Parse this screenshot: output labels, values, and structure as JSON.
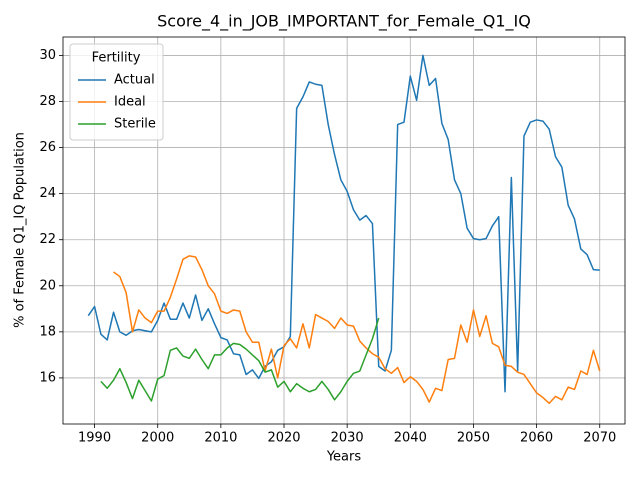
{
  "chart_data": {
    "type": "line",
    "title": "Score_4_in_JOB_IMPORTANT_for_Female_Q1_IQ",
    "xlabel": "Years",
    "ylabel": "% of Female Q1_IQ Population",
    "legend_title": "Fertility",
    "legend_loc": "upper left",
    "grid": true,
    "xlim": [
      1985,
      2074
    ],
    "ylim": [
      14.0,
      30.8
    ],
    "xticks": [
      1990,
      2000,
      2010,
      2020,
      2030,
      2040,
      2050,
      2060,
      2070
    ],
    "yticks": [
      16,
      18,
      20,
      22,
      24,
      26,
      28,
      30
    ],
    "x": [
      1989,
      1990,
      1991,
      1992,
      1993,
      1994,
      1995,
      1996,
      1997,
      1998,
      1999,
      2000,
      2001,
      2002,
      2003,
      2004,
      2005,
      2006,
      2007,
      2008,
      2009,
      2010,
      2011,
      2012,
      2013,
      2014,
      2015,
      2016,
      2017,
      2018,
      2019,
      2020,
      2021,
      2022,
      2023,
      2024,
      2025,
      2026,
      2027,
      2028,
      2029,
      2030,
      2031,
      2032,
      2033,
      2034,
      2035,
      2036,
      2037,
      2038,
      2039,
      2040,
      2041,
      2042,
      2043,
      2044,
      2045,
      2046,
      2047,
      2048,
      2049,
      2050,
      2051,
      2052,
      2053,
      2054,
      2055,
      2056,
      2057,
      2058,
      2059,
      2060,
      2061,
      2062,
      2063,
      2064,
      2065,
      2066,
      2067,
      2068,
      2069,
      2070
    ],
    "series": [
      {
        "name": "Actual",
        "color": "#1f77b4",
        "values": [
          18.7,
          19.1,
          17.9,
          17.65,
          18.85,
          18.0,
          17.85,
          18.05,
          18.1,
          18.05,
          18.0,
          18.5,
          19.25,
          18.55,
          18.55,
          19.25,
          18.6,
          19.6,
          18.5,
          19.0,
          18.35,
          17.75,
          17.65,
          17.05,
          17.0,
          16.15,
          16.35,
          15.98,
          16.5,
          16.7,
          17.2,
          17.35,
          17.8,
          27.7,
          28.2,
          28.85,
          28.75,
          28.7,
          27.0,
          25.7,
          24.6,
          24.1,
          23.3,
          22.85,
          23.05,
          22.7,
          16.5,
          16.3,
          17.2,
          27.0,
          27.1,
          29.1,
          28.05,
          30.0,
          28.7,
          29.0,
          27.05,
          26.35,
          24.6,
          24.0,
          22.5,
          22.05,
          22.0,
          22.05,
          22.6,
          23.0,
          15.4,
          24.7,
          16.3,
          26.5,
          27.1,
          27.2,
          27.15,
          26.8,
          25.6,
          25.15,
          23.5,
          22.9,
          21.6,
          21.35,
          20.7,
          20.68
        ]
      },
      {
        "name": "Ideal",
        "color": "#ff7f0e",
        "values": [
          null,
          null,
          null,
          null,
          20.6,
          20.4,
          19.7,
          18.0,
          18.95,
          18.6,
          18.4,
          18.9,
          18.9,
          19.5,
          20.3,
          21.15,
          21.3,
          21.25,
          20.7,
          20.0,
          19.65,
          18.9,
          18.8,
          18.95,
          18.9,
          18.0,
          17.55,
          17.55,
          16.3,
          17.25,
          16.0,
          17.4,
          17.7,
          17.3,
          18.35,
          17.3,
          18.75,
          18.6,
          18.45,
          18.15,
          18.6,
          18.3,
          18.25,
          17.6,
          17.3,
          17.05,
          16.9,
          16.4,
          16.2,
          16.45,
          15.8,
          16.05,
          15.85,
          15.5,
          14.95,
          15.55,
          15.45,
          16.8,
          16.85,
          18.3,
          17.55,
          18.95,
          17.8,
          18.7,
          17.5,
          17.35,
          16.55,
          16.5,
          16.25,
          16.15,
          15.75,
          15.35,
          15.15,
          14.9,
          15.2,
          15.05,
          15.6,
          15.5,
          16.3,
          16.15,
          17.2,
          16.3
        ]
      },
      {
        "name": "Sterile",
        "color": "#2ca02c",
        "values": [
          null,
          null,
          15.85,
          15.55,
          15.9,
          16.4,
          15.8,
          15.1,
          15.9,
          15.45,
          15.0,
          15.95,
          16.1,
          17.2,
          17.3,
          16.95,
          16.85,
          17.25,
          16.8,
          16.4,
          17.0,
          17.0,
          17.3,
          17.5,
          17.45,
          17.25,
          17.0,
          16.75,
          16.25,
          16.35,
          15.6,
          15.85,
          15.4,
          15.75,
          15.55,
          15.4,
          15.5,
          15.85,
          15.5,
          15.05,
          15.4,
          15.85,
          16.2,
          16.3,
          17.0,
          17.7,
          18.6,
          null,
          null,
          null,
          null,
          null,
          null,
          null,
          null,
          null,
          null,
          null,
          null,
          null,
          null,
          null,
          null,
          null,
          null,
          null,
          null,
          null,
          null,
          null,
          null,
          null,
          null,
          null,
          null,
          null,
          null,
          null,
          null,
          null,
          null,
          null
        ]
      }
    ]
  }
}
